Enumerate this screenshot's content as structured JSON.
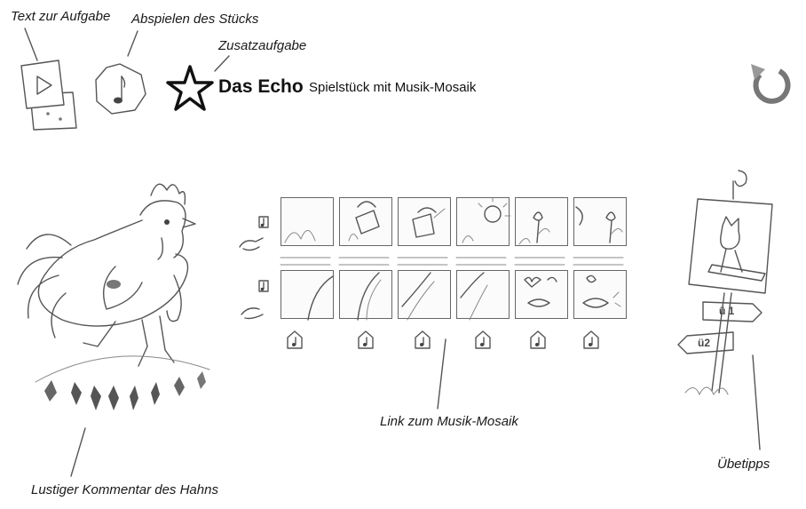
{
  "annotations": {
    "task_text": "Text zur Aufgabe",
    "play_piece": "Abspielen des Stücks",
    "extra_task": "Zusatzaufgabe",
    "mosaic_link": "Link zum Musik-Mosaik",
    "rooster_comment": "Lustiger Kommentar des Hahns",
    "practice_tips": "Übetipps"
  },
  "header": {
    "title": "Das Echo",
    "subtitle": "Spielstück mit Musik-Mosaik"
  },
  "signpost": {
    "sign_upper": "ü 1",
    "sign_lower": "ü2"
  },
  "icons": {
    "task_text": "play-icon",
    "play_piece": "music-note-icon",
    "extra_task": "star-icon",
    "reset": "refresh-icon"
  }
}
